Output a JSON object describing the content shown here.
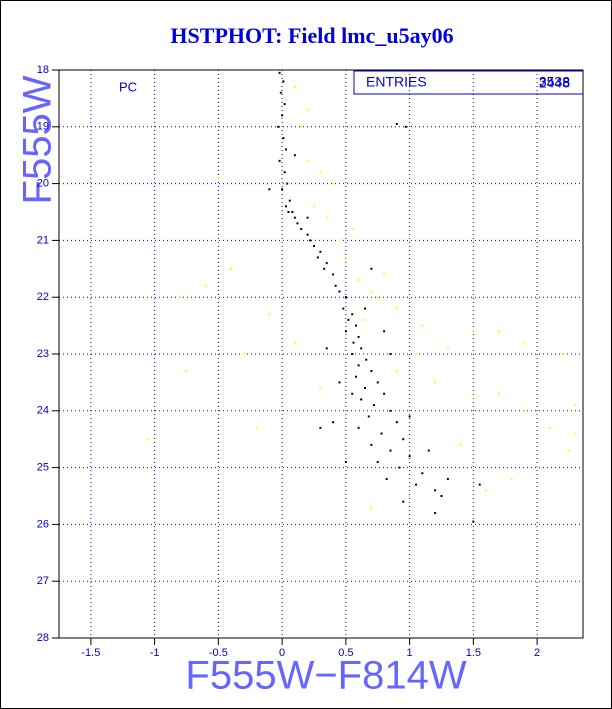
{
  "chart_data": {
    "type": "scatter",
    "title": "HSTPHOT: Field lmc_u5ay06",
    "x_label": "F555W−F814W",
    "y_label": "F555W",
    "annotation": "PC",
    "stats_label": "ENTRIES",
    "stats_values": [
      3538,
      2448
    ],
    "xlim": [
      -1.75,
      2.36
    ],
    "ylim": [
      28,
      18
    ],
    "xticks": [
      -1.5,
      -1,
      -0.5,
      0,
      0.5,
      1,
      1.5,
      2
    ],
    "yticks": [
      18,
      19,
      20,
      21,
      22,
      23,
      24,
      25,
      26,
      27,
      28
    ],
    "grid": true,
    "series": [
      {
        "color": "#ffff00",
        "x": [
          0.1,
          0.15,
          0.2,
          0.3,
          0.25,
          0.35,
          0.45,
          0.5,
          0.6,
          0.7,
          0.65,
          -0.4,
          -0.6,
          -0.8,
          -0.75,
          -1.05,
          -0.3,
          -0.1,
          0.1,
          0.9,
          1.1,
          1.3,
          1.5,
          1.7,
          1.9,
          2.2,
          1.2,
          1.5,
          1.9,
          2.3,
          2.1,
          2.25,
          2.0,
          1.8,
          1.4,
          1.0,
          0.7,
          0.9,
          1.05,
          0.4,
          0.55,
          0.75,
          -0.2,
          -0.5,
          0.2,
          0.8,
          1.6,
          0.3,
          1.7,
          2.3
        ],
        "values": [
          18.3,
          19.0,
          19.6,
          19.8,
          20.4,
          20.6,
          21.0,
          21.3,
          21.7,
          21.9,
          22.4,
          21.5,
          21.8,
          22.0,
          23.3,
          24.5,
          23.0,
          22.3,
          22.8,
          22.2,
          22.5,
          22.9,
          22.6,
          22.6,
          22.8,
          23.0,
          23.5,
          23.8,
          24.0,
          23.9,
          24.3,
          24.7,
          25.0,
          25.2,
          24.6,
          25.5,
          25.7,
          23.3,
          23.0,
          20.0,
          20.8,
          22.0,
          24.3,
          19.9,
          18.7,
          21.6,
          25.4,
          23.6,
          23.7,
          24.4
        ]
      },
      {
        "color": "#000000",
        "x": [
          -0.02,
          0.01,
          -0.01,
          0.02,
          0.0,
          -0.03,
          0.01,
          0.03,
          -0.02,
          0.02,
          0.04,
          0.0,
          0.06,
          0.03,
          0.08,
          0.1,
          0.05,
          0.12,
          0.15,
          0.2,
          0.22,
          0.25,
          0.3,
          0.28,
          0.35,
          0.33,
          0.4,
          0.42,
          0.45,
          0.5,
          0.48,
          0.55,
          0.52,
          0.58,
          0.5,
          0.6,
          0.56,
          0.62,
          0.55,
          0.66,
          0.6,
          0.7,
          0.58,
          0.75,
          0.65,
          0.8,
          0.62,
          0.72,
          0.85,
          0.68,
          0.9,
          0.6,
          0.78,
          0.95,
          0.7,
          0.85,
          1.0,
          0.75,
          0.92,
          1.1,
          0.82,
          1.05,
          1.2,
          0.95,
          1.2,
          1.5,
          0.4,
          0.3,
          0.55,
          0.45,
          0.85,
          1.0,
          1.15,
          1.25,
          0.97,
          0.9,
          0.7,
          0.2,
          -0.1,
          0.1,
          0.65,
          0.35,
          0.8,
          1.3,
          0.5,
          1.55
        ],
        "values": [
          18.05,
          18.2,
          18.4,
          18.6,
          18.8,
          19.0,
          19.2,
          19.4,
          19.6,
          19.8,
          20.0,
          20.1,
          20.3,
          20.4,
          20.5,
          20.6,
          20.5,
          20.7,
          20.8,
          20.9,
          21.0,
          21.1,
          21.2,
          21.3,
          21.4,
          21.5,
          21.6,
          21.8,
          21.9,
          22.0,
          22.2,
          22.3,
          22.4,
          22.5,
          22.6,
          22.7,
          22.8,
          22.9,
          23.0,
          23.1,
          23.2,
          23.3,
          23.4,
          23.5,
          23.6,
          23.7,
          23.8,
          23.9,
          24.0,
          24.1,
          24.2,
          24.3,
          24.4,
          24.5,
          24.6,
          24.7,
          24.8,
          24.9,
          25.0,
          25.1,
          25.2,
          25.3,
          25.4,
          25.6,
          25.8,
          25.95,
          24.2,
          24.3,
          23.7,
          23.5,
          23.0,
          24.1,
          24.7,
          25.5,
          19.0,
          18.95,
          21.5,
          20.6,
          20.1,
          19.5,
          22.2,
          22.9,
          22.6,
          25.2,
          24.9,
          25.3
        ]
      }
    ]
  }
}
